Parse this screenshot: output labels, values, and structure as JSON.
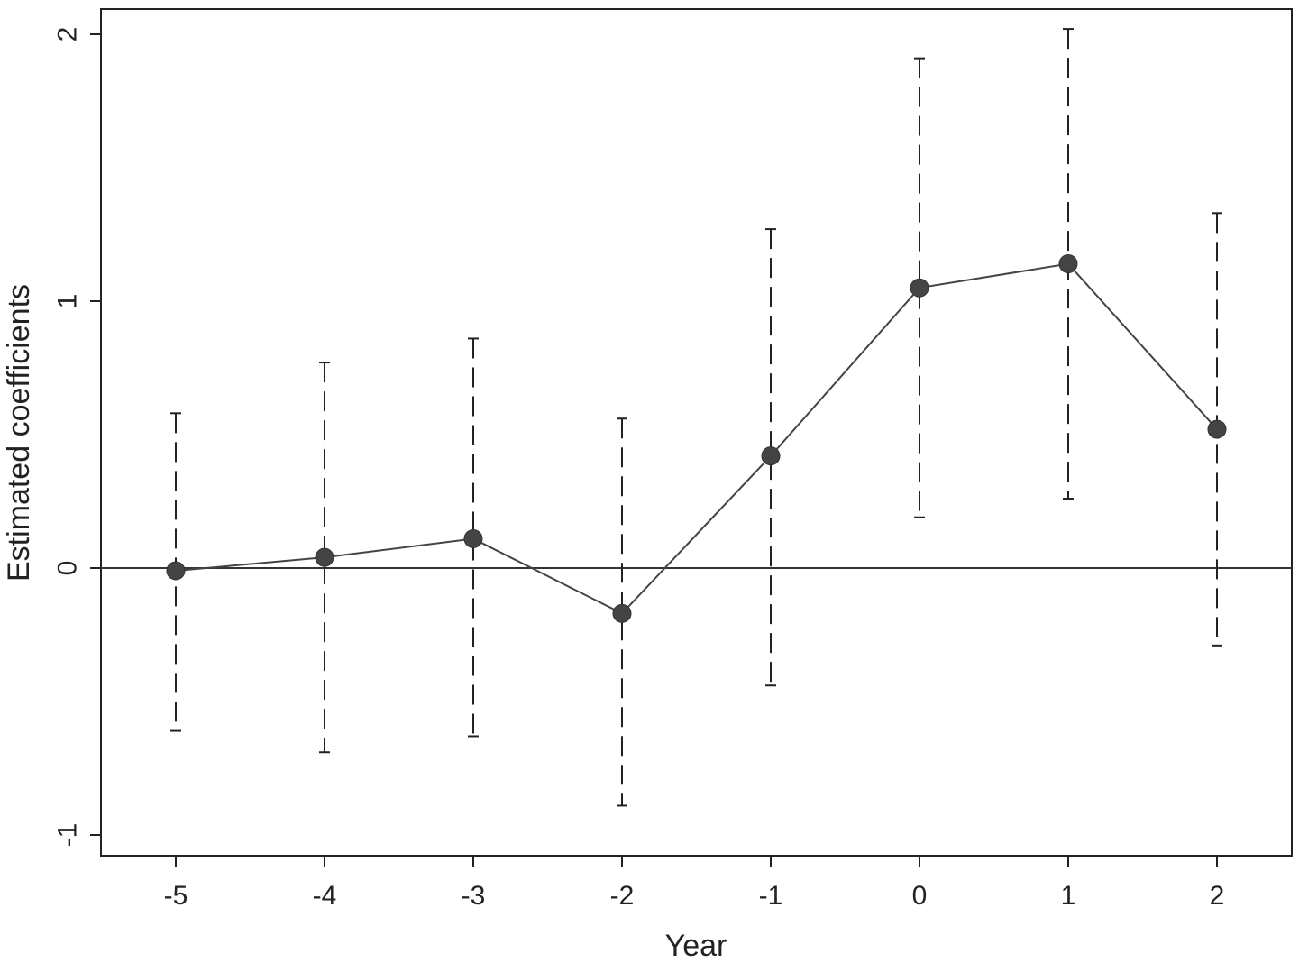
{
  "chart_data": {
    "type": "line",
    "title": "",
    "xlabel": "Year",
    "ylabel": "Estimated  coefficients",
    "xlim": [
      -5.5,
      2.5
    ],
    "ylim": [
      -1.08,
      2.03
    ],
    "xticks": [
      -5,
      -4,
      -3,
      -2,
      -1,
      0,
      1,
      2
    ],
    "yticks": [
      -1,
      0,
      1,
      2
    ],
    "reference_line_y": 0,
    "grid": false,
    "legend": "none",
    "series": [
      {
        "x": [
          -5,
          -4,
          -3,
          -2,
          -1,
          0,
          1,
          2
        ],
        "values": [
          -0.01,
          0.04,
          0.11,
          -0.17,
          0.42,
          1.05,
          1.14,
          0.52
        ],
        "ci_lower": [
          -0.61,
          -0.69,
          -0.63,
          -0.89,
          -0.44,
          0.19,
          0.26,
          -0.29
        ],
        "ci_upper": [
          0.58,
          0.77,
          0.86,
          0.56,
          1.27,
          1.91,
          2.02,
          1.33
        ],
        "marker": "circle",
        "color": "#444444"
      }
    ]
  }
}
